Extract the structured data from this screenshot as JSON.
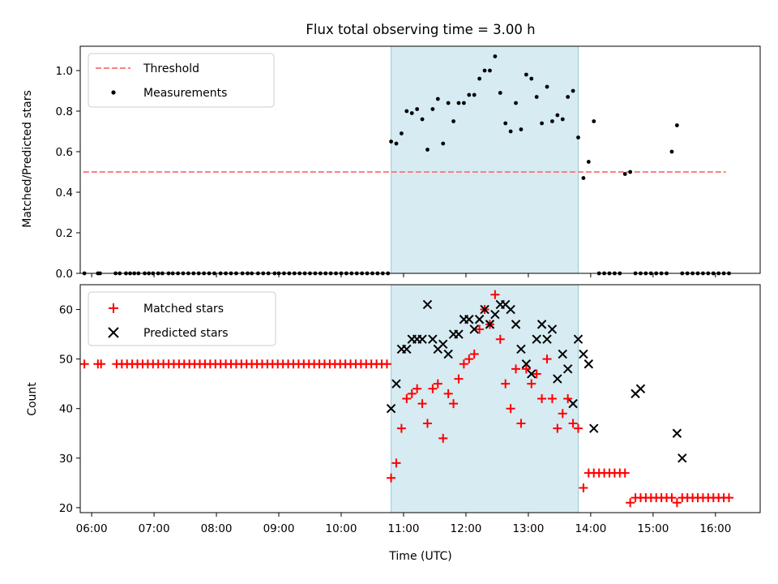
{
  "chart_data": [
    {
      "type": "scatter",
      "title": "Flux total observing time = 3.00 h",
      "xlabel": "",
      "ylabel": "Matched/Predicted stars",
      "ylim": [
        0,
        1.12
      ],
      "xlim": [
        "05:49",
        "16:43"
      ],
      "yticks": [
        "0.0",
        "0.2",
        "0.4",
        "0.6",
        "0.8",
        "1.0"
      ],
      "grid": false,
      "legend_position": "top-left",
      "highlight_span": [
        "10:48",
        "13:48"
      ],
      "series": [
        {
          "name": "Threshold",
          "style": "dashed-line",
          "color": "#ff7f7f",
          "x": [
            "05:52",
            "16:10"
          ],
          "y": [
            0.5,
            0.5
          ]
        },
        {
          "name": "Measurements",
          "style": "dot",
          "color": "#000000",
          "x": [
            "05:53",
            "06:06",
            "06:08",
            "06:23",
            "06:27",
            "06:33",
            "06:37",
            "06:41",
            "06:45",
            "06:51",
            "06:55",
            "06:59",
            "07:04",
            "07:08",
            "07:14",
            "07:18",
            "07:23",
            "07:28",
            "07:33",
            "07:38",
            "07:43",
            "07:48",
            "07:53",
            "07:58",
            "08:04",
            "08:09",
            "08:14",
            "08:19",
            "08:25",
            "08:30",
            "08:34",
            "08:40",
            "08:45",
            "08:50",
            "08:56",
            "09:00",
            "09:05",
            "09:10",
            "09:15",
            "09:20",
            "09:25",
            "09:30",
            "09:35",
            "09:40",
            "09:45",
            "09:50",
            "09:55",
            "10:00",
            "10:05",
            "10:10",
            "10:15",
            "10:20",
            "10:25",
            "10:30",
            "10:35",
            "10:40",
            "10:45",
            "10:48",
            "10:53",
            "10:58",
            "11:03",
            "11:08",
            "11:13",
            "11:18",
            "11:23",
            "11:28",
            "11:33",
            "11:38",
            "11:43",
            "11:48",
            "11:53",
            "11:58",
            "12:03",
            "12:08",
            "12:13",
            "12:18",
            "12:23",
            "12:28",
            "12:33",
            "12:38",
            "12:43",
            "12:48",
            "12:53",
            "12:58",
            "13:03",
            "13:08",
            "13:13",
            "13:18",
            "13:23",
            "13:28",
            "13:33",
            "13:38",
            "13:43",
            "13:48",
            "13:53",
            "13:58",
            "14:03",
            "14:08",
            "14:13",
            "14:18",
            "14:23",
            "14:28",
            "14:33",
            "14:38",
            "14:43",
            "14:48",
            "14:53",
            "14:58",
            "15:03",
            "15:08",
            "15:13",
            "15:18",
            "15:23",
            "15:28",
            "15:33",
            "15:38",
            "15:43",
            "15:48",
            "15:53",
            "15:58",
            "16:03",
            "16:08",
            "16:13"
          ],
          "y": [
            0,
            0,
            0,
            0,
            0,
            0,
            0,
            0,
            0,
            0,
            0,
            0,
            0,
            0,
            0,
            0,
            0,
            0,
            0,
            0,
            0,
            0,
            0,
            0,
            0,
            0,
            0,
            0,
            0,
            0,
            0,
            0,
            0,
            0,
            0,
            0,
            0,
            0,
            0,
            0,
            0,
            0,
            0,
            0,
            0,
            0,
            0,
            0,
            0,
            0,
            0,
            0,
            0,
            0,
            0,
            0,
            0,
            0.65,
            0.64,
            0.69,
            0.8,
            0.79,
            0.81,
            0.76,
            0.61,
            0.81,
            0.86,
            0.64,
            0.84,
            0.75,
            0.84,
            0.84,
            0.88,
            0.88,
            0.96,
            1.0,
            1.0,
            1.07,
            0.89,
            0.74,
            0.7,
            0.84,
            0.71,
            0.98,
            0.96,
            0.87,
            0.74,
            0.92,
            0.75,
            0.78,
            0.76,
            0.87,
            0.9,
            0.67,
            0.47,
            0.55,
            0.75,
            0,
            0,
            0,
            0,
            0,
            0.49,
            0.5,
            0,
            0,
            0,
            0,
            0,
            0,
            0,
            0.6,
            0.73,
            0,
            0,
            0,
            0,
            0,
            0,
            0,
            0,
            0,
            0
          ]
        }
      ]
    },
    {
      "type": "scatter",
      "title": "",
      "xlabel": "Time (UTC)",
      "ylabel": "Count",
      "ylim": [
        19,
        65
      ],
      "xlim": [
        "05:49",
        "16:43"
      ],
      "xticks": [
        "06:00",
        "07:00",
        "08:00",
        "09:00",
        "10:00",
        "11:00",
        "12:00",
        "13:00",
        "14:00",
        "15:00",
        "16:00"
      ],
      "yticks": [
        "20",
        "30",
        "40",
        "50",
        "60"
      ],
      "grid": false,
      "legend_position": "top-left",
      "highlight_span": [
        "10:48",
        "13:48"
      ],
      "series": [
        {
          "name": "Matched stars",
          "marker": "plus",
          "color": "#ff0000",
          "x": [
            "05:53",
            "06:06",
            "06:09",
            "06:24",
            "06:29",
            "06:34",
            "06:39",
            "06:44",
            "06:49",
            "06:54",
            "06:59",
            "07:04",
            "07:09",
            "07:14",
            "07:19",
            "07:24",
            "07:29",
            "07:34",
            "07:39",
            "07:44",
            "07:49",
            "07:54",
            "07:59",
            "08:04",
            "08:09",
            "08:14",
            "08:19",
            "08:24",
            "08:29",
            "08:34",
            "08:39",
            "08:44",
            "08:49",
            "08:54",
            "08:59",
            "09:04",
            "09:09",
            "09:14",
            "09:19",
            "09:24",
            "09:29",
            "09:34",
            "09:39",
            "09:44",
            "09:49",
            "09:54",
            "09:59",
            "10:04",
            "10:09",
            "10:14",
            "10:19",
            "10:24",
            "10:29",
            "10:34",
            "10:39",
            "10:44",
            "10:48",
            "10:53",
            "10:58",
            "11:03",
            "11:08",
            "11:13",
            "11:18",
            "11:23",
            "11:28",
            "11:33",
            "11:38",
            "11:43",
            "11:48",
            "11:53",
            "11:58",
            "12:03",
            "12:08",
            "12:13",
            "12:18",
            "12:23",
            "12:28",
            "12:33",
            "12:38",
            "12:43",
            "12:48",
            "12:53",
            "12:58",
            "13:03",
            "13:08",
            "13:13",
            "13:18",
            "13:23",
            "13:28",
            "13:33",
            "13:38",
            "13:43",
            "13:48",
            "13:53",
            "13:58",
            "14:03",
            "14:08",
            "14:13",
            "14:18",
            "14:23",
            "14:28",
            "14:33",
            "14:38",
            "14:43",
            "14:48",
            "14:53",
            "14:58",
            "15:03",
            "15:08",
            "15:13",
            "15:18",
            "15:23",
            "15:28",
            "15:33",
            "15:38",
            "15:43",
            "15:48",
            "15:53",
            "15:58",
            "16:03",
            "16:08",
            "16:13"
          ],
          "y": [
            49,
            49,
            49,
            49,
            49,
            49,
            49,
            49,
            49,
            49,
            49,
            49,
            49,
            49,
            49,
            49,
            49,
            49,
            49,
            49,
            49,
            49,
            49,
            49,
            49,
            49,
            49,
            49,
            49,
            49,
            49,
            49,
            49,
            49,
            49,
            49,
            49,
            49,
            49,
            49,
            49,
            49,
            49,
            49,
            49,
            49,
            49,
            49,
            49,
            49,
            49,
            49,
            49,
            49,
            49,
            49,
            26,
            29,
            36,
            42,
            43,
            44,
            41,
            37,
            44,
            45,
            34,
            43,
            41,
            46,
            49,
            50,
            51,
            56,
            60,
            57,
            63,
            54,
            45,
            40,
            48,
            37,
            48,
            45,
            47,
            42,
            50,
            42,
            36,
            39,
            42,
            37,
            36,
            24,
            27,
            27,
            27,
            27,
            27,
            27,
            27,
            27,
            21,
            22,
            22,
            22,
            22,
            22,
            22,
            22,
            22,
            21,
            22,
            22,
            22,
            22,
            22,
            22,
            22,
            22,
            22,
            22
          ]
        },
        {
          "name": "Predicted stars",
          "marker": "x",
          "color": "#000000",
          "x": [
            "10:48",
            "10:53",
            "10:58",
            "11:03",
            "11:08",
            "11:13",
            "11:18",
            "11:23",
            "11:28",
            "11:33",
            "11:38",
            "11:43",
            "11:48",
            "11:53",
            "11:58",
            "12:03",
            "12:08",
            "12:13",
            "12:18",
            "12:23",
            "12:28",
            "12:33",
            "12:38",
            "12:43",
            "12:48",
            "12:53",
            "12:58",
            "13:03",
            "13:08",
            "13:13",
            "13:18",
            "13:23",
            "13:28",
            "13:33",
            "13:38",
            "13:43",
            "13:48",
            "13:53",
            "13:58",
            "14:03",
            "14:43",
            "14:48",
            "15:23",
            "15:28"
          ],
          "y": [
            40,
            45,
            52,
            52,
            54,
            54,
            54,
            61,
            54,
            52,
            53,
            51,
            55,
            55,
            58,
            58,
            56,
            58,
            60,
            57,
            59,
            61,
            61,
            60,
            57,
            52,
            49,
            47,
            54,
            57,
            54,
            56,
            46,
            51,
            48,
            41,
            54,
            51,
            49,
            36,
            43,
            44,
            35,
            30
          ]
        }
      ]
    }
  ]
}
